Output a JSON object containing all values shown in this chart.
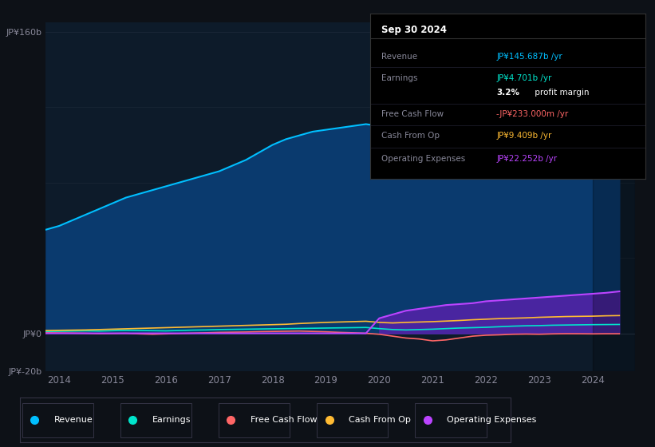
{
  "bg_color": "#0d1117",
  "plot_bg_color": "#0d1b2a",
  "years": [
    2013.75,
    2014.0,
    2014.25,
    2014.5,
    2014.75,
    2015.0,
    2015.25,
    2015.5,
    2015.75,
    2016.0,
    2016.25,
    2016.5,
    2016.75,
    2017.0,
    2017.25,
    2017.5,
    2017.75,
    2018.0,
    2018.25,
    2018.5,
    2018.75,
    2019.0,
    2019.25,
    2019.5,
    2019.75,
    2020.0,
    2020.25,
    2020.5,
    2020.75,
    2021.0,
    2021.25,
    2021.5,
    2021.75,
    2022.0,
    2022.25,
    2022.5,
    2022.75,
    2023.0,
    2023.25,
    2023.5,
    2023.75,
    2024.0,
    2024.25,
    2024.5
  ],
  "revenue": [
    55,
    57,
    60,
    63,
    66,
    69,
    72,
    74,
    76,
    78,
    80,
    82,
    84,
    86,
    89,
    92,
    96,
    100,
    103,
    105,
    107,
    108,
    109,
    110,
    111,
    110,
    108,
    107,
    106,
    107,
    109,
    112,
    116,
    120,
    123,
    125,
    127,
    129,
    131,
    132,
    133,
    135,
    140,
    145.687
  ],
  "earnings": [
    1.0,
    1.1,
    1.2,
    1.3,
    1.2,
    1.4,
    1.6,
    1.5,
    1.4,
    1.3,
    1.5,
    1.7,
    1.8,
    2.0,
    2.1,
    2.2,
    2.3,
    2.4,
    2.5,
    2.6,
    2.7,
    2.8,
    2.9,
    3.0,
    3.1,
    2.5,
    2.0,
    1.8,
    2.0,
    2.2,
    2.5,
    2.8,
    3.0,
    3.2,
    3.5,
    3.8,
    4.0,
    4.1,
    4.3,
    4.4,
    4.5,
    4.6,
    4.65,
    4.701
  ],
  "free_cash_flow": [
    0.3,
    0.2,
    0.1,
    0.0,
    -0.2,
    -0.1,
    0.0,
    -0.3,
    -0.5,
    -0.3,
    -0.1,
    0.1,
    0.3,
    0.5,
    0.6,
    0.7,
    0.9,
    1.0,
    1.1,
    1.2,
    1.0,
    0.8,
    0.5,
    0.3,
    0.0,
    -0.5,
    -1.5,
    -2.5,
    -3.0,
    -4.0,
    -3.5,
    -2.5,
    -1.5,
    -1.0,
    -0.8,
    -0.5,
    -0.4,
    -0.5,
    -0.3,
    -0.2,
    -0.233,
    -0.3,
    -0.233,
    -0.233
  ],
  "cash_from_op": [
    1.5,
    1.6,
    1.7,
    1.8,
    2.0,
    2.2,
    2.4,
    2.6,
    2.8,
    3.0,
    3.2,
    3.4,
    3.6,
    3.8,
    4.0,
    4.2,
    4.4,
    4.6,
    4.8,
    5.2,
    5.5,
    5.8,
    6.0,
    6.2,
    6.4,
    5.8,
    5.5,
    5.8,
    6.0,
    6.2,
    6.5,
    6.8,
    7.2,
    7.5,
    7.8,
    8.0,
    8.2,
    8.5,
    8.7,
    8.9,
    9.0,
    9.1,
    9.3,
    9.409
  ],
  "operating_expenses": [
    0.0,
    0.0,
    0.0,
    0.0,
    0.0,
    0.0,
    0.0,
    0.0,
    0.0,
    0.0,
    0.0,
    0.0,
    0.0,
    0.0,
    0.0,
    0.0,
    0.0,
    0.0,
    0.0,
    0.0,
    0.0,
    0.0,
    0.0,
    0.0,
    0.0,
    8.0,
    10.0,
    12.0,
    13.0,
    14.0,
    15.0,
    15.5,
    16.0,
    17.0,
    17.5,
    18.0,
    18.5,
    19.0,
    19.5,
    20.0,
    20.5,
    21.0,
    21.5,
    22.252
  ],
  "revenue_color": "#00bfff",
  "revenue_fill": "#0a3a6e",
  "earnings_color": "#00e5cc",
  "fcf_color": "#ff6666",
  "cash_op_color": "#ffbb33",
  "op_exp_color": "#bb44ff",
  "op_exp_fill": "#5522aa",
  "ylim_min": -20,
  "ylim_max": 165,
  "yticks": [
    -20,
    0,
    160
  ],
  "ytick_labels": [
    "JP¥-20b",
    "JP¥0",
    "JP¥160b"
  ],
  "xticks": [
    2014,
    2015,
    2016,
    2017,
    2018,
    2019,
    2020,
    2021,
    2022,
    2023,
    2024
  ],
  "grid_color": "#1e2a3a",
  "zero_line_color": "#2a3a4a",
  "info_box": {
    "title": "Sep 30 2024",
    "rows": [
      {
        "label": "Revenue",
        "value": "JP¥145.687b /yr",
        "value_color": "#00bfff"
      },
      {
        "label": "Earnings",
        "value": "JP¥4.701b /yr",
        "value_color": "#00e5cc"
      },
      {
        "label": "",
        "value": "3.2% profit margin",
        "value_color": "#ffffff"
      },
      {
        "label": "Free Cash Flow",
        "value": "-JP¥233.000m /yr",
        "value_color": "#ff6666"
      },
      {
        "label": "Cash From Op",
        "value": "JP¥9.409b /yr",
        "value_color": "#ffbb33"
      },
      {
        "label": "Operating Expenses",
        "value": "JP¥22.252b /yr",
        "value_color": "#bb44ff"
      }
    ]
  },
  "legend_items": [
    {
      "label": "Revenue",
      "color": "#00bfff"
    },
    {
      "label": "Earnings",
      "color": "#00e5cc"
    },
    {
      "label": "Free Cash Flow",
      "color": "#ff6666"
    },
    {
      "label": "Cash From Op",
      "color": "#ffbb33"
    },
    {
      "label": "Operating Expenses",
      "color": "#bb44ff"
    }
  ]
}
